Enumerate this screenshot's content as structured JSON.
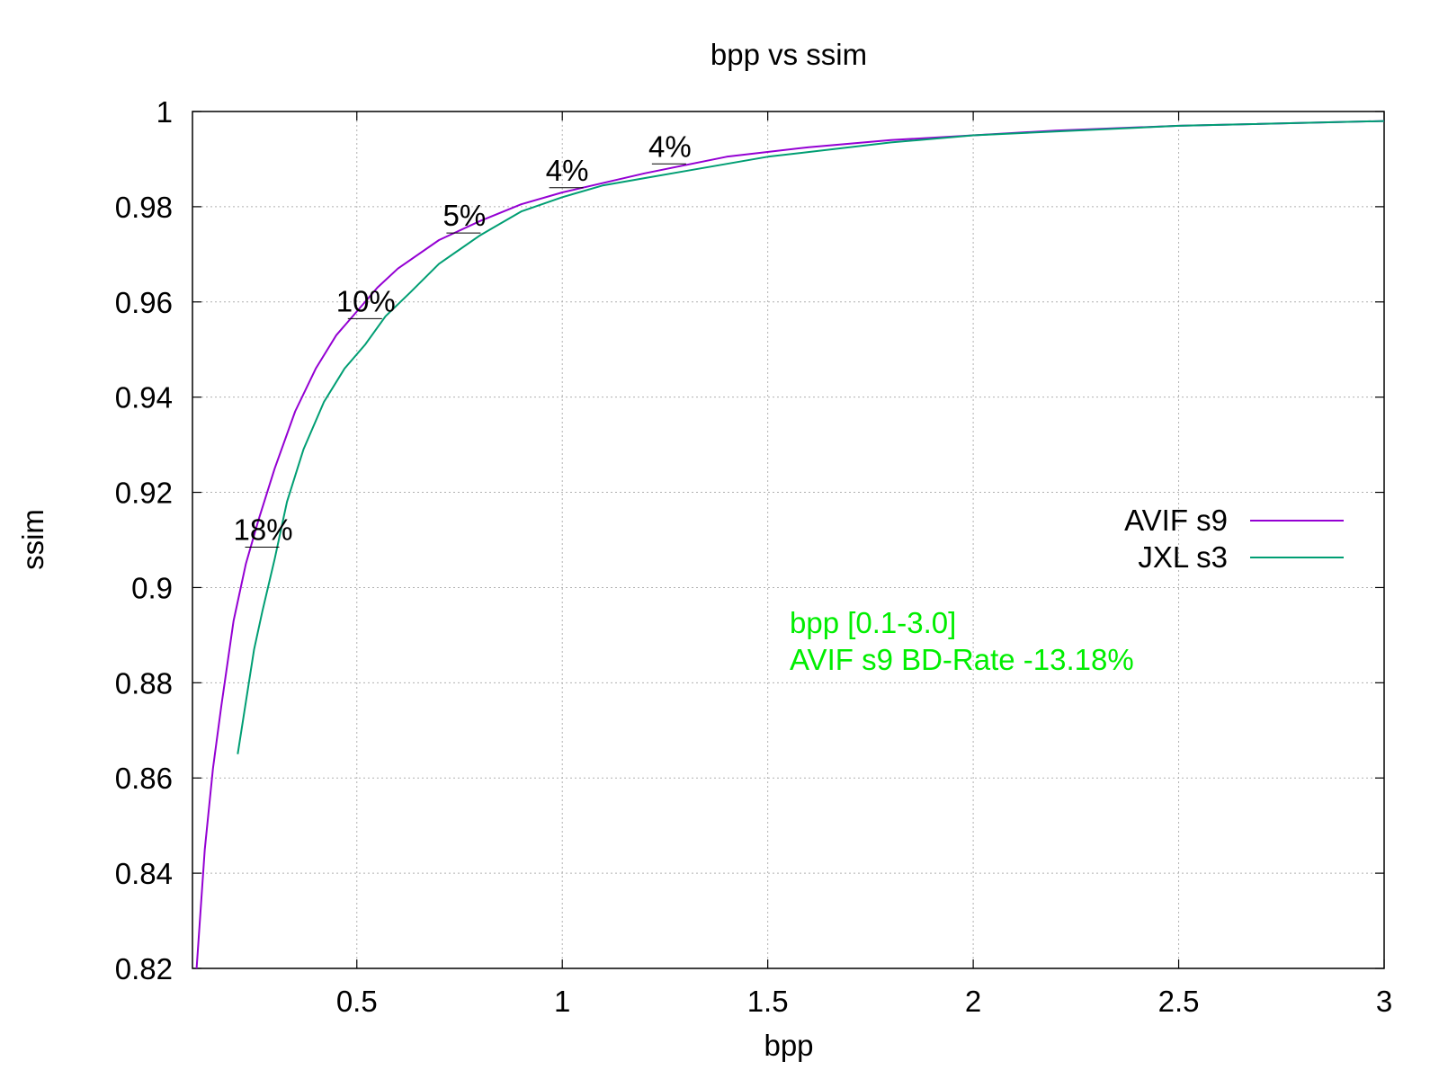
{
  "chart_data": {
    "type": "line",
    "title": "bpp vs ssim",
    "xlabel": "bpp",
    "ylabel": "ssim",
    "xlim": [
      0.1,
      3.0
    ],
    "ylim": [
      0.82,
      1.0
    ],
    "xticks": [
      0.5,
      1,
      1.5,
      2,
      2.5,
      3
    ],
    "xtick_labels": [
      "0.5",
      "1",
      "1.5",
      "2",
      "2.5",
      "3"
    ],
    "yticks": [
      0.82,
      0.84,
      0.86,
      0.88,
      0.9,
      0.92,
      0.94,
      0.96,
      0.98,
      1.0
    ],
    "ytick_labels": [
      "0.82",
      "0.84",
      "0.86",
      "0.88",
      "0.9",
      "0.92",
      "0.94",
      "0.96",
      "0.98",
      "1"
    ],
    "grid": true,
    "legend_position": "right",
    "series": [
      {
        "name": "AVIF s9",
        "color": "#9400d3",
        "x": [
          0.11,
          0.13,
          0.15,
          0.17,
          0.2,
          0.23,
          0.26,
          0.3,
          0.35,
          0.4,
          0.45,
          0.5,
          0.55,
          0.6,
          0.7,
          0.8,
          0.9,
          1.0,
          1.2,
          1.4,
          1.6,
          1.8,
          2.0,
          2.2,
          2.5,
          3.0
        ],
        "y": [
          0.82,
          0.845,
          0.862,
          0.875,
          0.893,
          0.905,
          0.914,
          0.925,
          0.937,
          0.946,
          0.953,
          0.958,
          0.963,
          0.967,
          0.973,
          0.977,
          0.9805,
          0.983,
          0.987,
          0.9905,
          0.9925,
          0.994,
          0.995,
          0.996,
          0.997,
          0.998
        ]
      },
      {
        "name": "JXL s3",
        "color": "#009e73",
        "x": [
          0.21,
          0.23,
          0.25,
          0.27,
          0.3,
          0.33,
          0.37,
          0.42,
          0.47,
          0.52,
          0.57,
          0.63,
          0.7,
          0.8,
          0.9,
          1.0,
          1.1,
          1.2,
          1.3,
          1.5,
          1.8,
          2.0,
          2.5,
          3.0
        ],
        "y": [
          0.865,
          0.876,
          0.887,
          0.895,
          0.906,
          0.918,
          0.929,
          0.939,
          0.946,
          0.951,
          0.957,
          0.962,
          0.968,
          0.974,
          0.979,
          0.982,
          0.9845,
          0.986,
          0.9875,
          0.9905,
          0.9935,
          0.995,
          0.997,
          0.998
        ]
      }
    ],
    "annotations": [
      {
        "text": "18%",
        "x": 0.25,
        "y": 0.91
      },
      {
        "text": "10%",
        "x": 0.5,
        "y": 0.958
      },
      {
        "text": "5%",
        "x": 0.74,
        "y": 0.976
      },
      {
        "text": "4%",
        "x": 0.99,
        "y": 0.9855
      },
      {
        "text": "4%",
        "x": 1.24,
        "y": 0.9905
      }
    ],
    "info_text": {
      "line1": "bpp [0.1-3.0]",
      "line2": "AVIF s9 BD-Rate -13.18%",
      "color": "#00ee00"
    }
  }
}
